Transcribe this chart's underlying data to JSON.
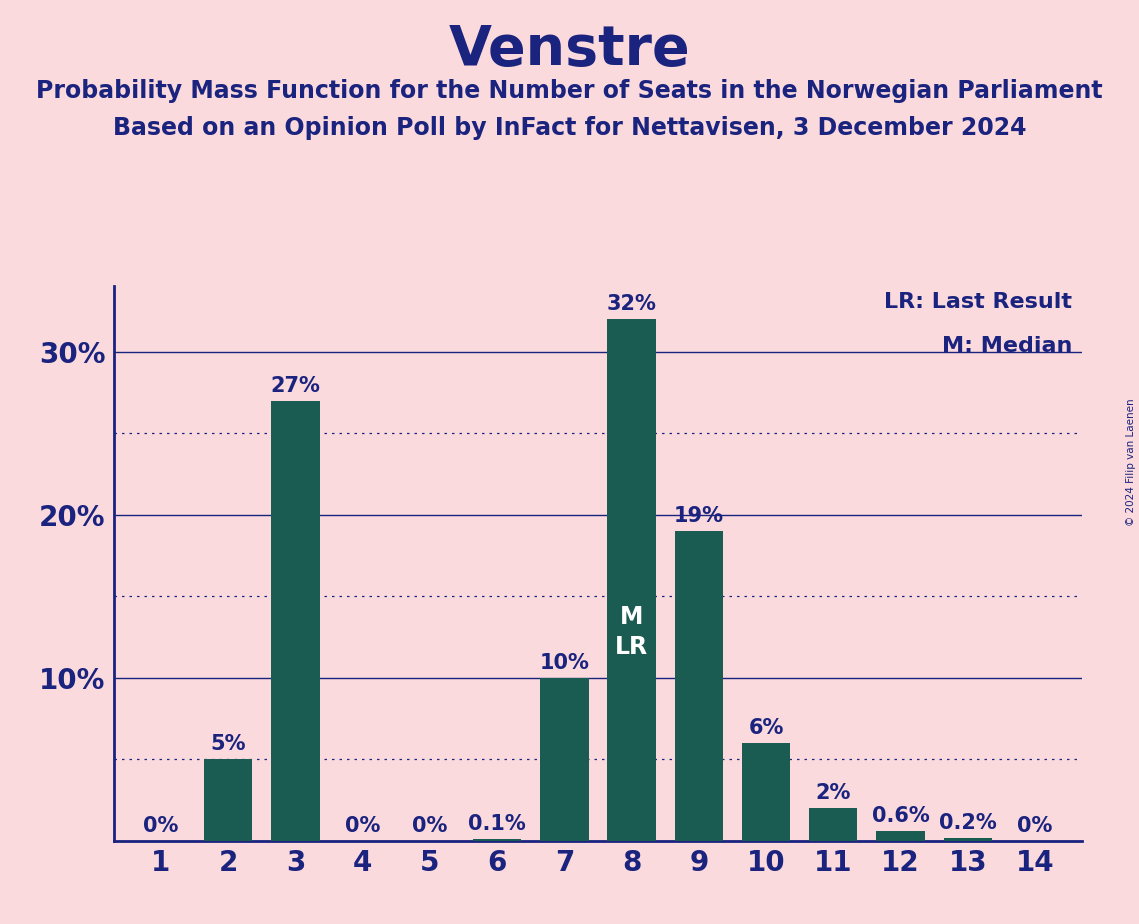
{
  "title": "Venstre",
  "subtitle1": "Probability Mass Function for the Number of Seats in the Norwegian Parliament",
  "subtitle2": "Based on an Opinion Poll by InFact for Nettavisen, 3 December 2024",
  "copyright": "© 2024 Filip van Laenen",
  "categories": [
    1,
    2,
    3,
    4,
    5,
    6,
    7,
    8,
    9,
    10,
    11,
    12,
    13,
    14
  ],
  "values": [
    0.0,
    5.0,
    27.0,
    0.0,
    0.0,
    0.1,
    10.0,
    32.0,
    19.0,
    6.0,
    2.0,
    0.6,
    0.2,
    0.0
  ],
  "labels": [
    "0%",
    "5%",
    "27%",
    "0%",
    "0%",
    "0.1%",
    "10%",
    "32%",
    "19%",
    "6%",
    "2%",
    "0.6%",
    "0.2%",
    "0%"
  ],
  "bar_color": "#1a5c52",
  "background_color": "#fadadd",
  "text_color": "#1a237e",
  "title_fontsize": 40,
  "subtitle_fontsize": 17,
  "label_fontsize": 15,
  "tick_fontsize": 20,
  "median_seat": 8,
  "lr_seat": 8,
  "legend_lr": "LR: Last Result",
  "legend_m": "M: Median",
  "ylim": [
    0,
    34
  ],
  "solid_gridlines": [
    10,
    20,
    30
  ],
  "dotted_gridlines": [
    5,
    15,
    25
  ]
}
